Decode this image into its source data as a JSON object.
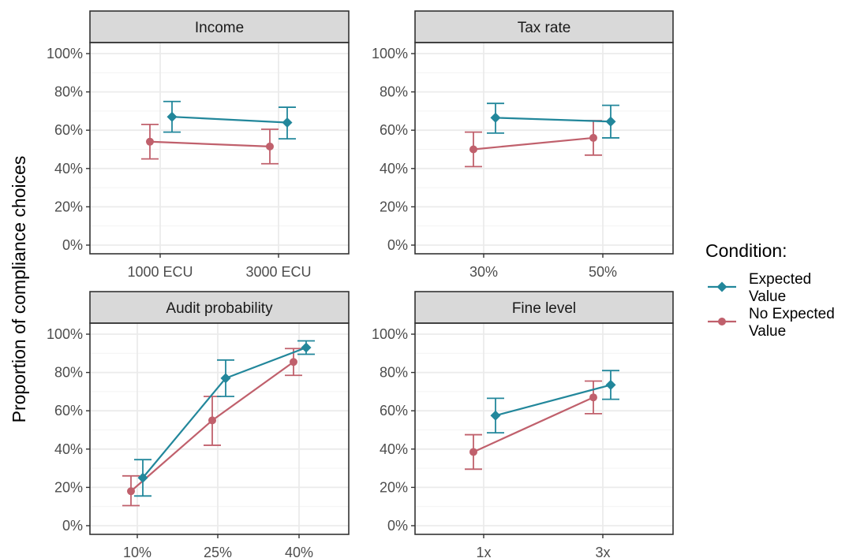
{
  "colors": {
    "expected_value": "#22879B",
    "no_expected_value": "#C0606C",
    "strip_fill": "#D9D9D9",
    "panel_border": "#333333",
    "grid_major": "#EBEBEB",
    "grid_minor": "#F3F3F3"
  },
  "chart_data": {
    "type": "line",
    "ylabel": "Proportion of compliance choices",
    "ylim": [
      0,
      100
    ],
    "yticks": [
      "0%",
      "20%",
      "40%",
      "60%",
      "80%",
      "100%"
    ],
    "grid": true,
    "error_bars": true,
    "legend": {
      "title": "Condition:",
      "position": "right",
      "entries": [
        {
          "lines": [
            "Expected",
            "Value"
          ],
          "marker": "diamond",
          "series": "Expected Value"
        },
        {
          "lines": [
            "No Expected",
            "Value"
          ],
          "marker": "circle",
          "series": "No Expected Value"
        }
      ]
    },
    "panels": [
      {
        "title": "Income",
        "categories": [
          "1000 ECU",
          "3000 ECU"
        ],
        "series": [
          {
            "name": "Expected Value",
            "marker": "diamond",
            "values": [
              67,
              64
            ],
            "lower": [
              59,
              55.5
            ],
            "upper": [
              75,
              72
            ]
          },
          {
            "name": "No Expected Value",
            "marker": "circle",
            "values": [
              54,
              51.5
            ],
            "lower": [
              45,
              42.5
            ],
            "upper": [
              63,
              60.5
            ]
          }
        ]
      },
      {
        "title": "Tax rate",
        "categories": [
          "30%",
          "50%"
        ],
        "series": [
          {
            "name": "Expected Value",
            "marker": "diamond",
            "values": [
              66.5,
              64.5
            ],
            "lower": [
              58.5,
              56
            ],
            "upper": [
              74,
              73
            ]
          },
          {
            "name": "No Expected Value",
            "marker": "circle",
            "values": [
              50,
              56
            ],
            "lower": [
              41,
              47
            ],
            "upper": [
              59,
              65
            ]
          }
        ]
      },
      {
        "title": "Audit probability",
        "categories": [
          "10%",
          "25%",
          "40%"
        ],
        "series": [
          {
            "name": "Expected Value",
            "marker": "diamond",
            "values": [
              25,
              77,
              93
            ],
            "lower": [
              15.5,
              67.5,
              89.5
            ],
            "upper": [
              34.5,
              86.5,
              96.5
            ]
          },
          {
            "name": "No Expected Value",
            "marker": "circle",
            "values": [
              18,
              55,
              85.5
            ],
            "lower": [
              10.5,
              42,
              78.5
            ],
            "upper": [
              26,
              67.5,
              92.5
            ]
          }
        ]
      },
      {
        "title": "Fine level",
        "categories": [
          "1x",
          "3x"
        ],
        "series": [
          {
            "name": "Expected Value",
            "marker": "diamond",
            "values": [
              57.5,
              73.5
            ],
            "lower": [
              48.5,
              66
            ],
            "upper": [
              66.5,
              81
            ]
          },
          {
            "name": "No Expected Value",
            "marker": "circle",
            "values": [
              38.5,
              67
            ],
            "lower": [
              29.5,
              58.5
            ],
            "upper": [
              47.5,
              75.5
            ]
          }
        ]
      }
    ]
  }
}
